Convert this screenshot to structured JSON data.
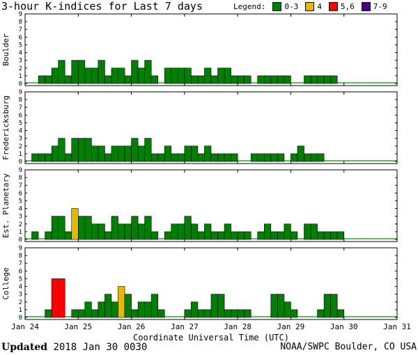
{
  "header": {
    "title": "3-hour K-indices for Last 7 days",
    "legend_label": "Legend:",
    "legend": [
      {
        "label": "0-3",
        "color": "#008000"
      },
      {
        "label": "4",
        "color": "#e8b800"
      },
      {
        "label": "5,6",
        "color": "#ff0000"
      },
      {
        "label": "7-9",
        "color": "#4b0082"
      }
    ]
  },
  "footer": {
    "updated_label": "Updated",
    "updated_value": "2018 Jan 30 0030",
    "source": "NOAA/SWPC Boulder, CO USA"
  },
  "chart_data": {
    "type": "bar",
    "xlabel": "Coordinate Universal Time (UTC)",
    "x_ticks": [
      "Jan 24",
      "Jan 25",
      "Jan 26",
      "Jan 27",
      "Jan 28",
      "Jan 29",
      "Jan 30",
      "Jan 31"
    ],
    "ylim": [
      0,
      9
    ],
    "y_ticks": [
      0,
      1,
      2,
      3,
      4,
      5,
      6,
      7,
      8,
      9
    ],
    "bins_per_day": 8,
    "series": [
      {
        "name": "Boulder",
        "values": [
          0,
          0,
          1,
          1,
          2,
          3,
          1,
          3,
          3,
          2,
          2,
          3,
          1,
          2,
          2,
          1,
          3,
          2,
          3,
          1,
          0,
          2,
          2,
          2,
          2,
          1,
          1,
          2,
          1,
          2,
          2,
          1,
          1,
          1,
          0,
          1,
          1,
          1,
          1,
          1,
          0,
          0,
          1,
          1,
          1,
          1,
          1,
          0,
          0,
          0,
          0,
          0,
          0,
          0,
          0,
          0
        ]
      },
      {
        "name": "Fredericksburg",
        "values": [
          0,
          1,
          1,
          1,
          2,
          3,
          1,
          3,
          3,
          3,
          2,
          2,
          1,
          2,
          2,
          2,
          3,
          2,
          3,
          1,
          1,
          2,
          1,
          1,
          2,
          2,
          1,
          2,
          1,
          1,
          1,
          1,
          0,
          0,
          1,
          1,
          1,
          1,
          1,
          0,
          1,
          2,
          1,
          1,
          1,
          0,
          0,
          0,
          0,
          0,
          0,
          0,
          0,
          0,
          0,
          0
        ]
      },
      {
        "name": "Est. Planetary",
        "values": [
          0,
          1,
          0,
          1,
          3,
          3,
          1,
          4,
          3,
          3,
          2,
          2,
          1,
          3,
          2,
          2,
          3,
          2,
          3,
          1,
          0,
          1,
          2,
          2,
          3,
          2,
          1,
          2,
          1,
          1,
          2,
          1,
          1,
          1,
          0,
          1,
          2,
          1,
          1,
          2,
          1,
          0,
          2,
          2,
          1,
          1,
          1,
          1,
          0,
          0,
          0,
          0,
          0,
          0,
          0,
          0
        ]
      },
      {
        "name": "College",
        "values": [
          0,
          0,
          0,
          1,
          5,
          5,
          0,
          1,
          1,
          2,
          1,
          2,
          3,
          2,
          4,
          3,
          1,
          2,
          2,
          3,
          1,
          0,
          0,
          0,
          1,
          2,
          1,
          1,
          3,
          3,
          1,
          1,
          1,
          1,
          0,
          0,
          0,
          3,
          3,
          2,
          1,
          0,
          0,
          0,
          1,
          3,
          3,
          1,
          0,
          0,
          0,
          0,
          0,
          0,
          0,
          0
        ]
      }
    ]
  }
}
